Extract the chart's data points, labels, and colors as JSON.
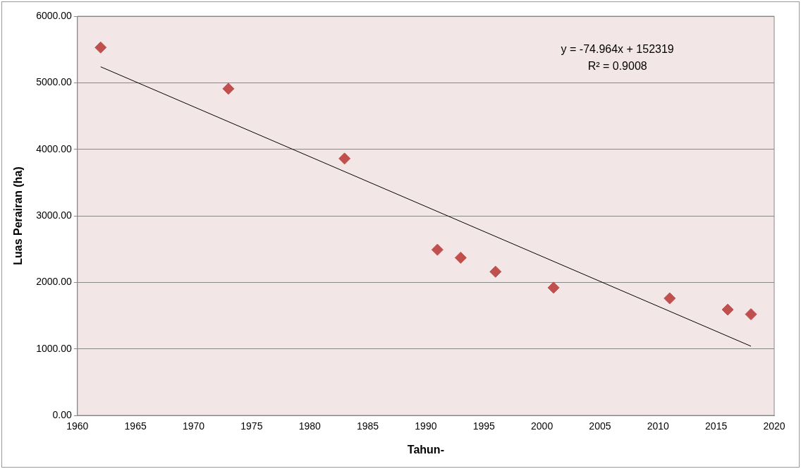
{
  "chart_data": {
    "type": "scatter",
    "xlabel": "Tahun-",
    "ylabel": "Luas Perairan (ha)",
    "series": [
      {
        "type": "scatter",
        "color": "#c0504d",
        "marker": "diamond",
        "x": [
          1962,
          1973,
          1983,
          1991,
          1993,
          1996,
          2001,
          2011,
          2016,
          2018
        ],
        "values": [
          5530,
          4910,
          3860,
          2490,
          2370,
          2160,
          1920,
          1760,
          1590,
          1520
        ]
      },
      {
        "type": "line",
        "color": "#000000",
        "marker": "none",
        "x": [
          1962,
          2018
        ],
        "values": [
          5240,
          1040
        ]
      }
    ],
    "xlim": [
      1960,
      2020
    ],
    "xticks": [
      1960,
      1965,
      1970,
      1975,
      1980,
      1985,
      1990,
      1995,
      2000,
      2005,
      2010,
      2015,
      2020
    ],
    "ylim": [
      0,
      6000
    ],
    "yticks": [
      {
        "value": 0,
        "label": "0.00"
      },
      {
        "value": 1000,
        "label": "1000.00"
      },
      {
        "value": 2000,
        "label": "2000.00"
      },
      {
        "value": 3000,
        "label": "3000.00"
      },
      {
        "value": 4000,
        "label": "4000.00"
      },
      {
        "value": 5000,
        "label": "5000.00"
      },
      {
        "value": 6000,
        "label": "6000.00"
      }
    ],
    "grid": "y",
    "legend": false,
    "annotations": [
      "y = -74.964x + 152319",
      "R² = 0.9008"
    ]
  }
}
